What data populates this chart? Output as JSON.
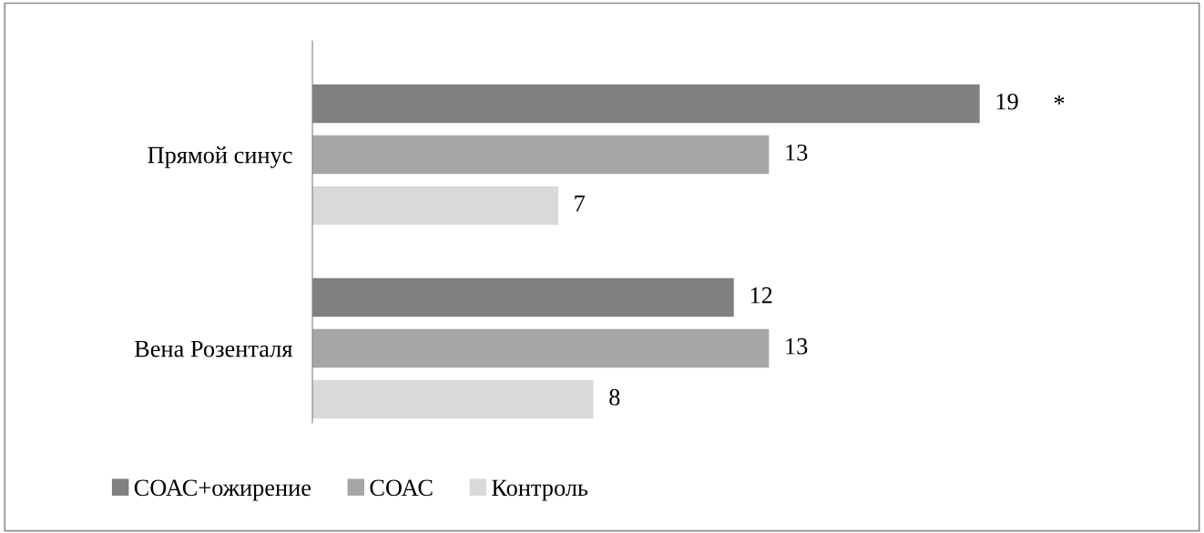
{
  "chart_data": {
    "type": "bar",
    "orientation": "horizontal",
    "categories": [
      "Прямой синус",
      "Вена Розенталя"
    ],
    "series": [
      {
        "name": "СОАС+ожирение",
        "color": "#808080",
        "values": [
          19,
          12
        ]
      },
      {
        "name": "СОАС",
        "color": "#a6a6a6",
        "values": [
          13,
          13
        ]
      },
      {
        "name": "Контроль",
        "color": "#d9d9d9",
        "values": [
          7,
          8
        ]
      }
    ],
    "tick_labels": "y",
    "data_labels": true,
    "legend": "bottom",
    "grid": false,
    "annotations": [
      "*"
    ]
  }
}
